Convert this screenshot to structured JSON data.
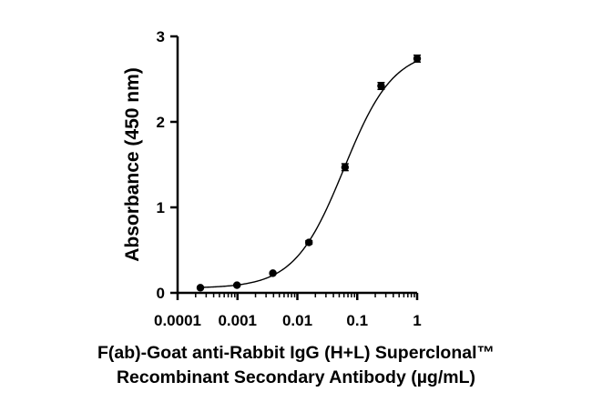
{
  "chart_data": {
    "type": "scatter",
    "title": "",
    "xlabel_lines": [
      "F(ab)-Goat anti-Rabbit IgG (H+L) Superclonal™",
      "Recombinant Secondary Antibody (µg/mL)"
    ],
    "ylabel": "Absorbance (450 nm)",
    "x_scale": "log",
    "xlim": [
      0.0001,
      1
    ],
    "ylim": [
      0,
      3
    ],
    "x_ticks": [
      0.0001,
      0.001,
      0.01,
      0.1,
      1
    ],
    "x_tick_labels": [
      "0.0001",
      "0.001",
      "0.01",
      "0.1",
      "1"
    ],
    "y_ticks": [
      0,
      1,
      2,
      3
    ],
    "y_tick_labels": [
      "0",
      "1",
      "2",
      "3"
    ],
    "grid": false,
    "series": [
      {
        "x": [
          0.00024,
          0.00098,
          0.0039,
          0.0156,
          0.0625,
          0.25,
          1
        ],
        "y": [
          0.06,
          0.09,
          0.23,
          0.59,
          1.47,
          2.42,
          2.74
        ],
        "yerr": [
          0.01,
          0.01,
          0.01,
          0.02,
          0.04,
          0.04,
          0.04
        ]
      }
    ],
    "fit": {
      "model": "4PL",
      "bottom": 0.055,
      "top": 2.85,
      "ec50": 0.06,
      "hill": 1.05
    },
    "colors": {
      "marker": "#000000",
      "axis": "#000000",
      "curve": "#000000"
    }
  }
}
